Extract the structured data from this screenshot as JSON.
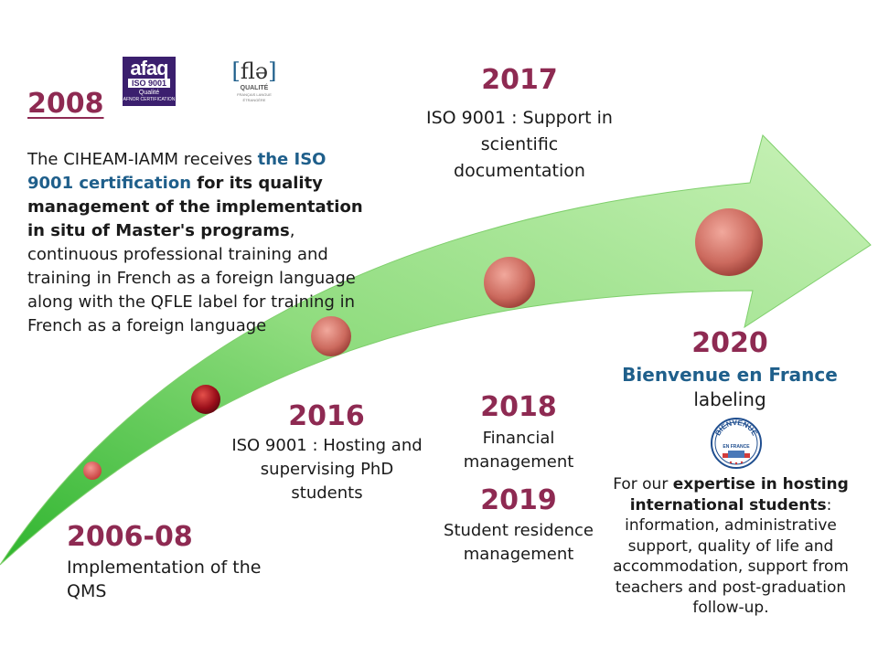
{
  "milestones": {
    "y2006": {
      "year": "2006-08",
      "text": "Implementation of the QMS"
    },
    "y2008": {
      "year": "2008",
      "intro": "The CIHEAM-IAMM receives ",
      "highlight": "the ISO 9001 certification",
      "bold": " for its quality management of the implementation in situ of Master's programs",
      "rest": ", continuous professional training and training in French as a foreign language along with the QFLE label for training in French as a foreign language"
    },
    "y2016": {
      "year": "2016",
      "text": "ISO 9001 : Hosting and supervising PhD students"
    },
    "y2017": {
      "year": "2017",
      "text": "ISO 9001 : Support in scientific documentation"
    },
    "y2018": {
      "year": "2018",
      "text": "Financial management"
    },
    "y2019": {
      "year": "2019",
      "text": "Student residence management"
    },
    "y2020": {
      "year": "2020",
      "highlight": "Bienvenue en France",
      "label": "labeling",
      "desc_intro": "For our ",
      "desc_bold": "expertise in hosting international students",
      "desc_rest": ": information, administrative support, quality of life and accommodation, support from teachers and post-graduation follow-up."
    }
  },
  "logos": {
    "afaq": {
      "line1": "afaq",
      "line2": "ISO 9001",
      "line3": "Qualité",
      "line4": "AFNOR CERTIFICATION"
    },
    "fle": {
      "bracket_open": "[",
      "word": "flə",
      "bracket_close": "]",
      "line2": "QUALITÉ",
      "line3": "FRANÇAIS LANGUE ÉTRANGÈRE"
    },
    "bienvenue": {
      "top": "BIENVENUE",
      "middle": "EN FRANCE"
    }
  },
  "colors": {
    "year": "#8e2a52",
    "highlight": "#1f5f8b",
    "arrow": "#9fe08a"
  }
}
